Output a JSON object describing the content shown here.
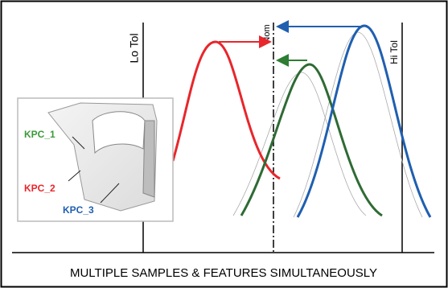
{
  "labels": {
    "lo_tol": "Lo Tol",
    "nom": "Nom",
    "hi_tol": "Hi Tol"
  },
  "features": [
    "KPC_1",
    "KPC_2",
    "KPC_3"
  ],
  "caption": "MULTIPLE SAMPLES & FEATURES SIMULTANEOUSLY"
}
